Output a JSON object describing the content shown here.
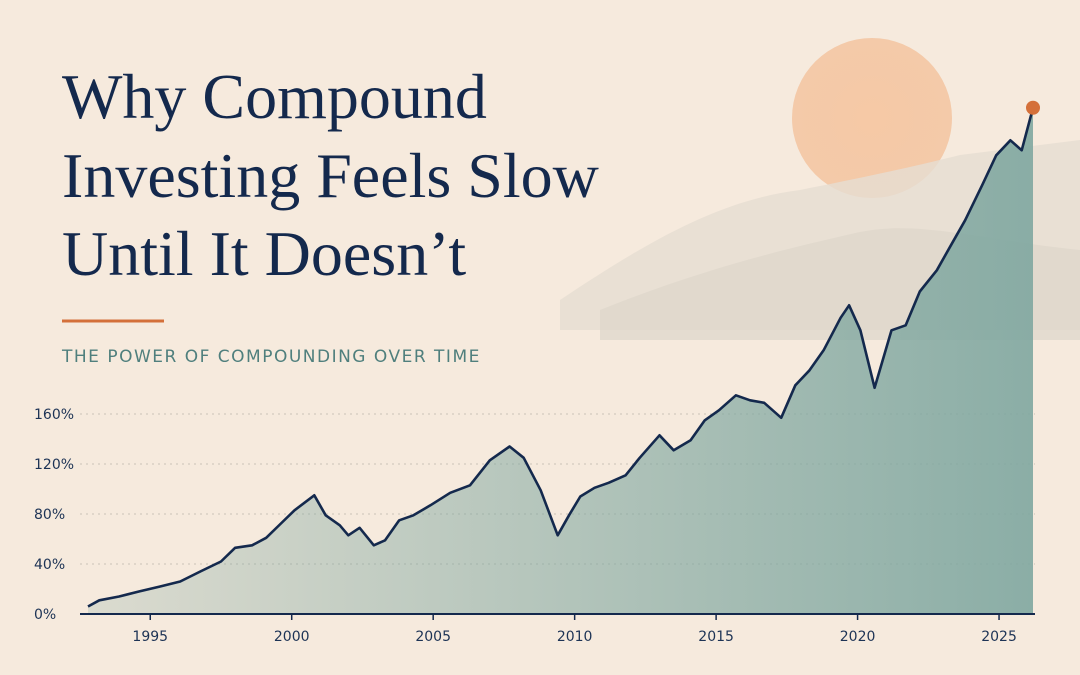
{
  "chart_data": {
    "type": "area",
    "title": [
      "Why Compound",
      "Investing Feels Slow",
      "Until It Doesn’t"
    ],
    "subtitle": "THE POWER OF COMPOUNDING OVER TIME",
    "x": [
      1992.8,
      1993.2,
      1993.9,
      1994.6,
      1995.35,
      1996.06,
      1996.77,
      1997.5,
      1998.0,
      1998.6,
      1999.1,
      1999.6,
      2000.1,
      2000.8,
      2001.2,
      2001.7,
      2002.0,
      2002.4,
      2002.9,
      2003.3,
      2003.8,
      2004.3,
      2004.9,
      2005.6,
      2006.3,
      2007.0,
      2007.7,
      2008.2,
      2008.8,
      2009.4,
      2009.8,
      2010.2,
      2010.7,
      2011.2,
      2011.8,
      2012.3,
      2013.0,
      2013.5,
      2014.1,
      2014.6,
      2015.1,
      2015.7,
      2016.2,
      2016.7,
      2017.3,
      2017.8,
      2018.3,
      2018.8,
      2019.4,
      2019.7,
      2020.1,
      2020.6,
      2021.2,
      2021.7,
      2022.2,
      2022.8,
      2023.3,
      2023.8,
      2024.4,
      2024.9,
      2025.4,
      2025.8,
      2026.2
    ],
    "values": [
      6,
      11,
      14,
      18,
      22,
      26,
      34,
      42,
      53,
      55,
      61,
      72,
      83,
      95,
      79,
      71,
      63,
      69,
      55,
      59,
      75,
      79,
      87,
      97,
      103,
      123,
      134,
      125,
      99,
      63,
      79,
      94,
      101,
      105,
      111,
      125,
      143,
      131,
      139,
      155,
      163,
      175,
      171,
      169,
      157,
      183,
      195,
      211,
      237,
      247,
      227,
      181,
      227,
      231,
      258,
      275,
      295,
      315,
      343,
      367,
      379,
      371,
      405
    ],
    "color": "#14294d",
    "fill_color": "#7fa7a0",
    "marker_color": "#d4703a",
    "xlim": [
      1992.8,
      2026.2
    ],
    "xticks": [
      1995,
      2000,
      2005,
      2010,
      2015,
      2020,
      2025
    ],
    "ylim": [
      0,
      420
    ],
    "yticks": [
      {
        "value": 0,
        "label": "0%"
      },
      {
        "value": 40,
        "label": "40%"
      },
      {
        "value": 80,
        "label": "80%"
      },
      {
        "value": 120,
        "label": "120%"
      },
      {
        "value": 160,
        "label": "160%"
      }
    ],
    "grid": true
  }
}
